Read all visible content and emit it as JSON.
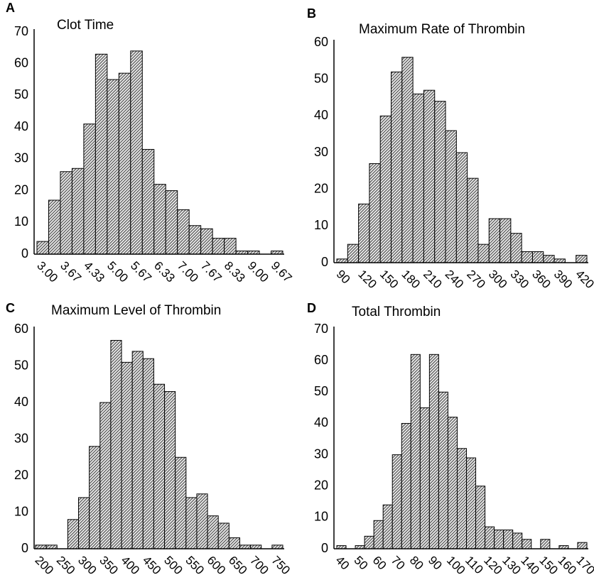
{
  "chart_data": [
    {
      "type": "bar",
      "label": "A",
      "title": "Clot Time",
      "categories": [
        "3.00",
        null,
        "3.67",
        null,
        "4.33",
        null,
        "5.00",
        null,
        "5.67",
        null,
        "6.33",
        null,
        "7.00",
        null,
        "7.67",
        null,
        "8.33",
        null,
        "9.00",
        null,
        "9.67"
      ],
      "values": [
        4,
        17,
        26,
        27,
        41,
        63,
        55,
        57,
        64,
        33,
        22,
        20,
        14,
        9,
        8,
        5,
        5,
        1,
        1,
        0,
        1
      ],
      "ylim": [
        0,
        70
      ],
      "yticks": [
        0,
        10,
        20,
        30,
        40,
        50,
        60,
        70
      ],
      "color": "#b8b8b8"
    },
    {
      "type": "bar",
      "label": "B",
      "title": "Maximum Rate of Thrombin",
      "categories": [
        "90",
        null,
        "120",
        null,
        "150",
        null,
        "180",
        null,
        "210",
        null,
        "240",
        null,
        "270",
        null,
        "300",
        null,
        "330",
        null,
        "360",
        null,
        "390",
        null,
        "420"
      ],
      "values": [
        1,
        5,
        16,
        27,
        40,
        52,
        56,
        46,
        47,
        44,
        36,
        30,
        23,
        5,
        12,
        12,
        8,
        3,
        3,
        2,
        1,
        0,
        2
      ],
      "ylim": [
        0,
        60
      ],
      "yticks": [
        0,
        10,
        20,
        30,
        40,
        50,
        60
      ],
      "color": "#b8b8b8"
    },
    {
      "type": "bar",
      "label": "C",
      "title": "Maximum Level of Thrombin",
      "categories": [
        "200",
        null,
        "250",
        null,
        "300",
        null,
        "350",
        null,
        "400",
        null,
        "450",
        null,
        "500",
        null,
        "550",
        null,
        "600",
        null,
        "650",
        null,
        "700",
        null,
        "750"
      ],
      "values": [
        1,
        1,
        0,
        8,
        14,
        28,
        40,
        57,
        51,
        54,
        52,
        45,
        43,
        25,
        14,
        15,
        9,
        7,
        3,
        1,
        1,
        0,
        1
      ],
      "ylim": [
        0,
        60
      ],
      "yticks": [
        0,
        10,
        20,
        30,
        40,
        50,
        60
      ],
      "color": "#b8b8b8"
    },
    {
      "type": "bar",
      "label": "D",
      "title": "Total Thrombin",
      "categories": [
        "40",
        null,
        "50",
        null,
        "60",
        null,
        "70",
        null,
        "80",
        null,
        "90",
        null,
        "100",
        null,
        "110",
        null,
        "120",
        null,
        "130",
        null,
        "140",
        null,
        "150",
        null,
        "160",
        null,
        "170"
      ],
      "values": [
        1,
        0,
        1,
        4,
        9,
        14,
        30,
        40,
        62,
        45,
        62,
        50,
        42,
        32,
        29,
        20,
        7,
        6,
        6,
        5,
        3,
        0,
        3,
        0,
        1,
        0,
        2
      ],
      "ylim": [
        0,
        70
      ],
      "yticks": [
        0,
        10,
        20,
        30,
        40,
        50,
        60,
        70
      ],
      "color": "#b8b8b8"
    }
  ]
}
